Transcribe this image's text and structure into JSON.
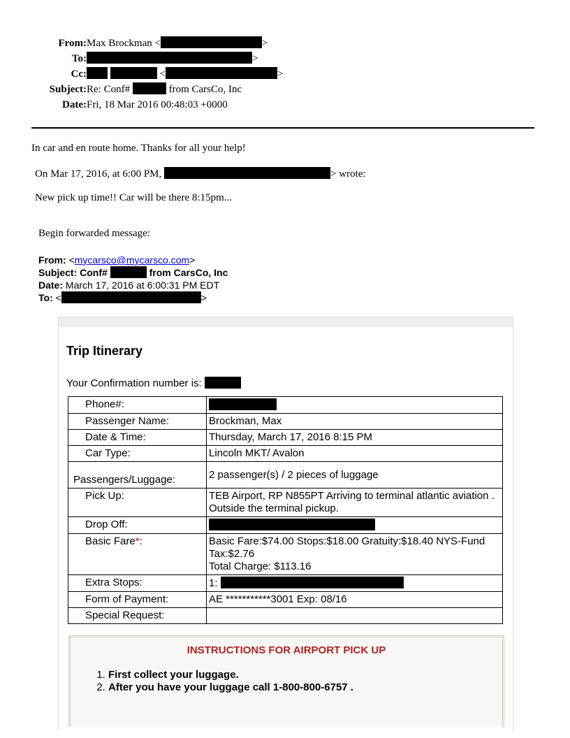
{
  "header": {
    "from_label": "From:",
    "from_name": "Max Brockman <",
    "from_close": ">",
    "to_label": "To:",
    "to_close": ">",
    "cc_label": "Cc:",
    "cc_open": "<",
    "cc_close": ">",
    "subject_label": "Subject:",
    "subject_pre": "Re: Conf#",
    "subject_post": "from CarsCo, Inc",
    "date_label": "Date:",
    "date": "Fri, 18 Mar 2016 00:48:03 +0000"
  },
  "body": {
    "line1": "In car and en route home. Thanks for all your help!",
    "quote_pre": "On Mar 17, 2016, at 6:00 PM,",
    "quote_post": "> wrote:",
    "line2": "New pick up time!!  Car will be there 8:15pm...",
    "forward": "Begin forwarded message:"
  },
  "forwarded": {
    "from_label": "From:",
    "from_open": "<",
    "from_email": "mycarsco@mycarsco.com",
    "from_close": ">",
    "subject_label": "Subject:",
    "subject_pre": "Conf#",
    "subject_post": "from CarsCo, Inc",
    "date_label": "Date:",
    "date": "March 17, 2016 at 6:00:31 PM EDT",
    "to_label": "To:",
    "to_open": "<",
    "to_close": ">"
  },
  "itinerary": {
    "title": "Trip Itinerary",
    "confirmation_label": "Your Confirmation number is:",
    "rows": [
      {
        "label": "Phone#:",
        "value": ""
      },
      {
        "label": "Passenger Name:",
        "value": "Brockman, Max"
      },
      {
        "label": "Date & Time:",
        "value": "Thursday, March 17, 2016 8:15 PM"
      },
      {
        "label": "Car Type:",
        "value": "Lincoln MKT/ Avalon"
      },
      {
        "label": "Passengers/Luggage:",
        "value": "2 passenger(s) / 2 pieces of luggage"
      },
      {
        "label": "Pick Up:",
        "value": "TEB Airport, RP N855PT Arriving to terminal atlantic aviation . Outside the terminal pickup."
      },
      {
        "label": "Drop Off:",
        "value": ""
      },
      {
        "label": "Basic Fare",
        "asterisk": "*",
        "colon": ":",
        "value": "Basic Fare:$74.00 Stops:$18.00 Gratuity:$18.40 NYS-Fund Tax:$2.76",
        "value2": "Total Charge: $113.16"
      },
      {
        "label": "Extra Stops:",
        "value": "1:"
      },
      {
        "label": "Form of Payment:",
        "value": "AE ***********3001 Exp: 08/16"
      },
      {
        "label": "Special Request:",
        "value": ""
      }
    ]
  },
  "instructions": {
    "title": "INSTRUCTIONS FOR AIRPORT PICK UP",
    "steps": [
      "First collect your luggage.",
      "After you have your luggage call 1-800-800-6757 ."
    ]
  },
  "colors": {
    "instruction_title": "#b22222",
    "link": "#0000ee"
  }
}
